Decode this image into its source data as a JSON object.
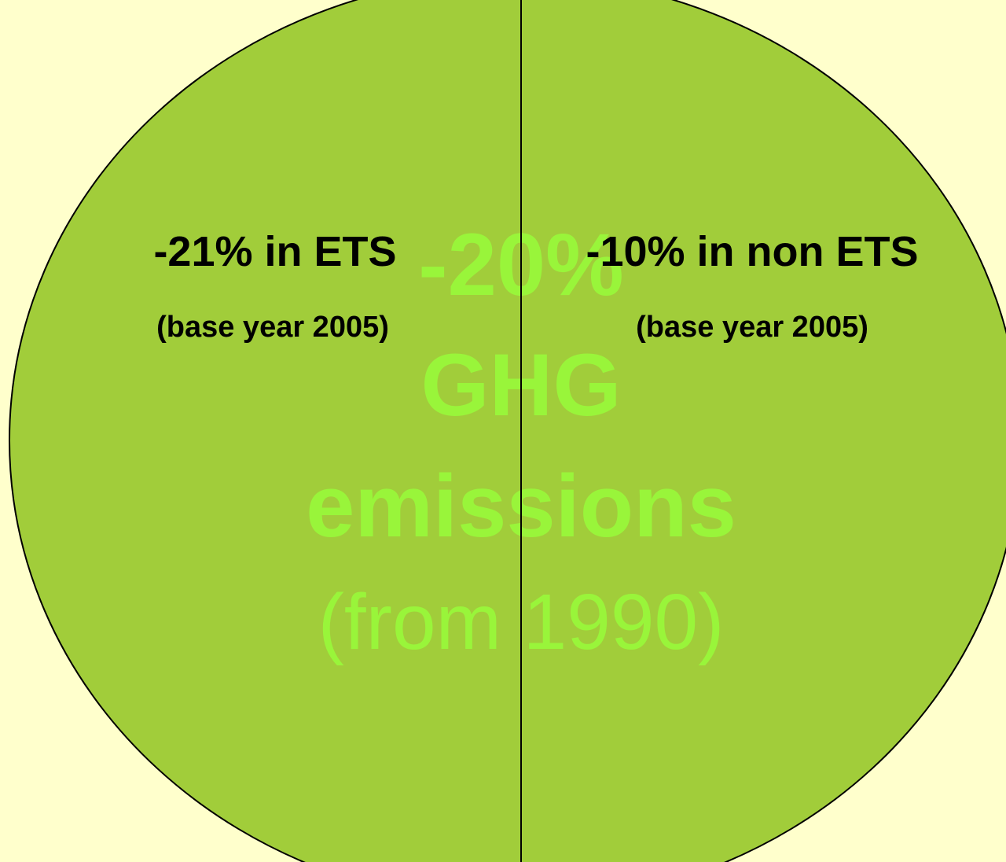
{
  "center": {
    "lines": [
      "-20%",
      "GHG",
      "emissions"
    ],
    "note": "(from 1990)"
  },
  "left": {
    "title": "-21% in ETS",
    "subtitle": "(base year 2005)"
  },
  "right": {
    "title": "-10% in non ETS",
    "subtitle": "(base year 2005)"
  }
}
